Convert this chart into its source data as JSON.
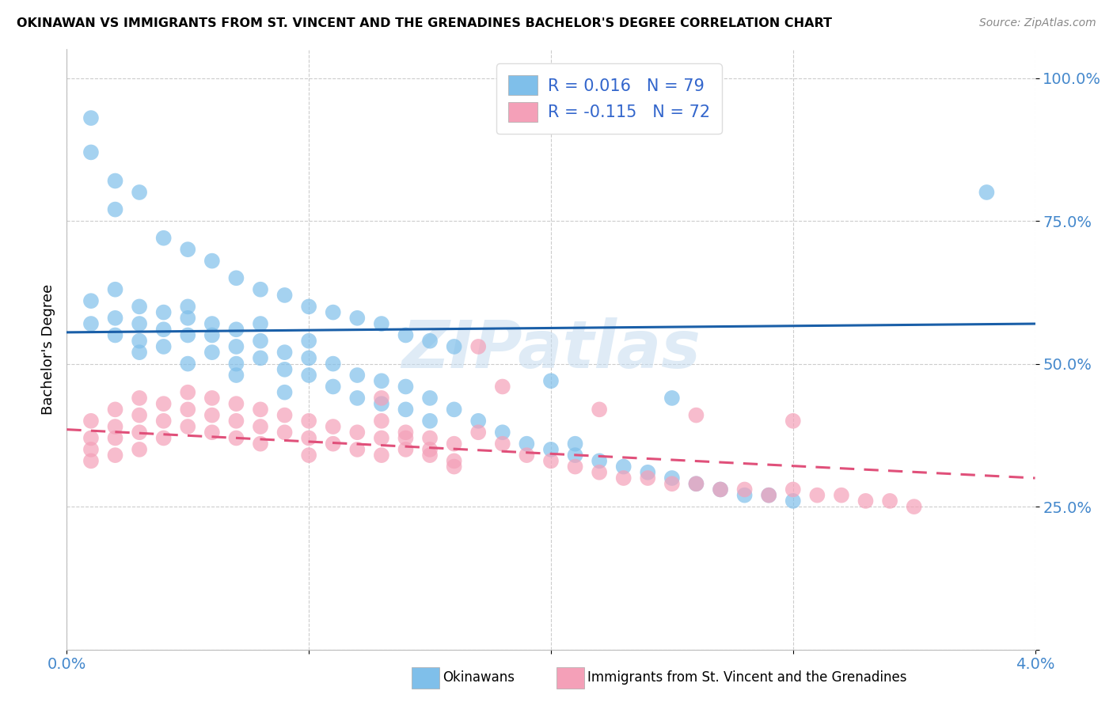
{
  "title": "OKINAWAN VS IMMIGRANTS FROM ST. VINCENT AND THE GRENADINES BACHELOR'S DEGREE CORRELATION CHART",
  "source": "Source: ZipAtlas.com",
  "ylabel": "Bachelor's Degree",
  "xlim": [
    0.0,
    0.04
  ],
  "ylim": [
    0.0,
    1.05
  ],
  "blue_color": "#7fbfea",
  "pink_color": "#f4a0b8",
  "blue_line_color": "#1a5fa8",
  "pink_line_color": "#e0507a",
  "tick_label_color": "#4488cc",
  "watermark": "ZIPatlas",
  "legend_text_color": "#3366cc",
  "blue_scatter_x": [
    0.001,
    0.001,
    0.002,
    0.002,
    0.002,
    0.003,
    0.003,
    0.003,
    0.003,
    0.004,
    0.004,
    0.004,
    0.005,
    0.005,
    0.005,
    0.005,
    0.006,
    0.006,
    0.006,
    0.007,
    0.007,
    0.007,
    0.007,
    0.008,
    0.008,
    0.008,
    0.009,
    0.009,
    0.009,
    0.01,
    0.01,
    0.01,
    0.011,
    0.011,
    0.012,
    0.012,
    0.013,
    0.013,
    0.014,
    0.014,
    0.015,
    0.015,
    0.016,
    0.017,
    0.018,
    0.019,
    0.02,
    0.021,
    0.021,
    0.022,
    0.023,
    0.024,
    0.025,
    0.026,
    0.027,
    0.028,
    0.029,
    0.03,
    0.001,
    0.001,
    0.002,
    0.002,
    0.003,
    0.004,
    0.005,
    0.006,
    0.007,
    0.008,
    0.009,
    0.01,
    0.011,
    0.012,
    0.013,
    0.014,
    0.015,
    0.016,
    0.02,
    0.025,
    0.038
  ],
  "blue_scatter_y": [
    0.57,
    0.61,
    0.58,
    0.63,
    0.55,
    0.57,
    0.6,
    0.52,
    0.54,
    0.59,
    0.53,
    0.56,
    0.55,
    0.58,
    0.6,
    0.5,
    0.52,
    0.55,
    0.57,
    0.5,
    0.53,
    0.56,
    0.48,
    0.51,
    0.54,
    0.57,
    0.49,
    0.52,
    0.45,
    0.48,
    0.51,
    0.54,
    0.46,
    0.5,
    0.44,
    0.48,
    0.43,
    0.47,
    0.42,
    0.46,
    0.4,
    0.44,
    0.42,
    0.4,
    0.38,
    0.36,
    0.35,
    0.34,
    0.36,
    0.33,
    0.32,
    0.31,
    0.3,
    0.29,
    0.28,
    0.27,
    0.27,
    0.26,
    0.93,
    0.87,
    0.82,
    0.77,
    0.8,
    0.72,
    0.7,
    0.68,
    0.65,
    0.63,
    0.62,
    0.6,
    0.59,
    0.58,
    0.57,
    0.55,
    0.54,
    0.53,
    0.47,
    0.44,
    0.8
  ],
  "pink_scatter_x": [
    0.001,
    0.001,
    0.001,
    0.001,
    0.002,
    0.002,
    0.002,
    0.002,
    0.003,
    0.003,
    0.003,
    0.003,
    0.004,
    0.004,
    0.004,
    0.005,
    0.005,
    0.005,
    0.006,
    0.006,
    0.006,
    0.007,
    0.007,
    0.007,
    0.008,
    0.008,
    0.008,
    0.009,
    0.009,
    0.01,
    0.01,
    0.01,
    0.011,
    0.011,
    0.012,
    0.012,
    0.013,
    0.013,
    0.013,
    0.014,
    0.014,
    0.015,
    0.015,
    0.016,
    0.016,
    0.017,
    0.018,
    0.019,
    0.02,
    0.021,
    0.022,
    0.023,
    0.024,
    0.025,
    0.026,
    0.027,
    0.028,
    0.029,
    0.03,
    0.031,
    0.032,
    0.033,
    0.034,
    0.035,
    0.026,
    0.03,
    0.022,
    0.017,
    0.018,
    0.013,
    0.014,
    0.015,
    0.016
  ],
  "pink_scatter_y": [
    0.4,
    0.37,
    0.35,
    0.33,
    0.42,
    0.39,
    0.37,
    0.34,
    0.44,
    0.41,
    0.38,
    0.35,
    0.43,
    0.4,
    0.37,
    0.45,
    0.42,
    0.39,
    0.44,
    0.41,
    0.38,
    0.43,
    0.4,
    0.37,
    0.42,
    0.39,
    0.36,
    0.41,
    0.38,
    0.4,
    0.37,
    0.34,
    0.39,
    0.36,
    0.38,
    0.35,
    0.4,
    0.37,
    0.34,
    0.38,
    0.35,
    0.37,
    0.34,
    0.36,
    0.33,
    0.38,
    0.36,
    0.34,
    0.33,
    0.32,
    0.31,
    0.3,
    0.3,
    0.29,
    0.29,
    0.28,
    0.28,
    0.27,
    0.28,
    0.27,
    0.27,
    0.26,
    0.26,
    0.25,
    0.41,
    0.4,
    0.42,
    0.53,
    0.46,
    0.44,
    0.37,
    0.35,
    0.32
  ],
  "blue_line_x0": 0.0,
  "blue_line_x1": 0.04,
  "blue_line_y0": 0.555,
  "blue_line_y1": 0.57,
  "pink_line_x0": 0.0,
  "pink_line_x1": 0.04,
  "pink_line_y0": 0.385,
  "pink_line_y1": 0.3
}
